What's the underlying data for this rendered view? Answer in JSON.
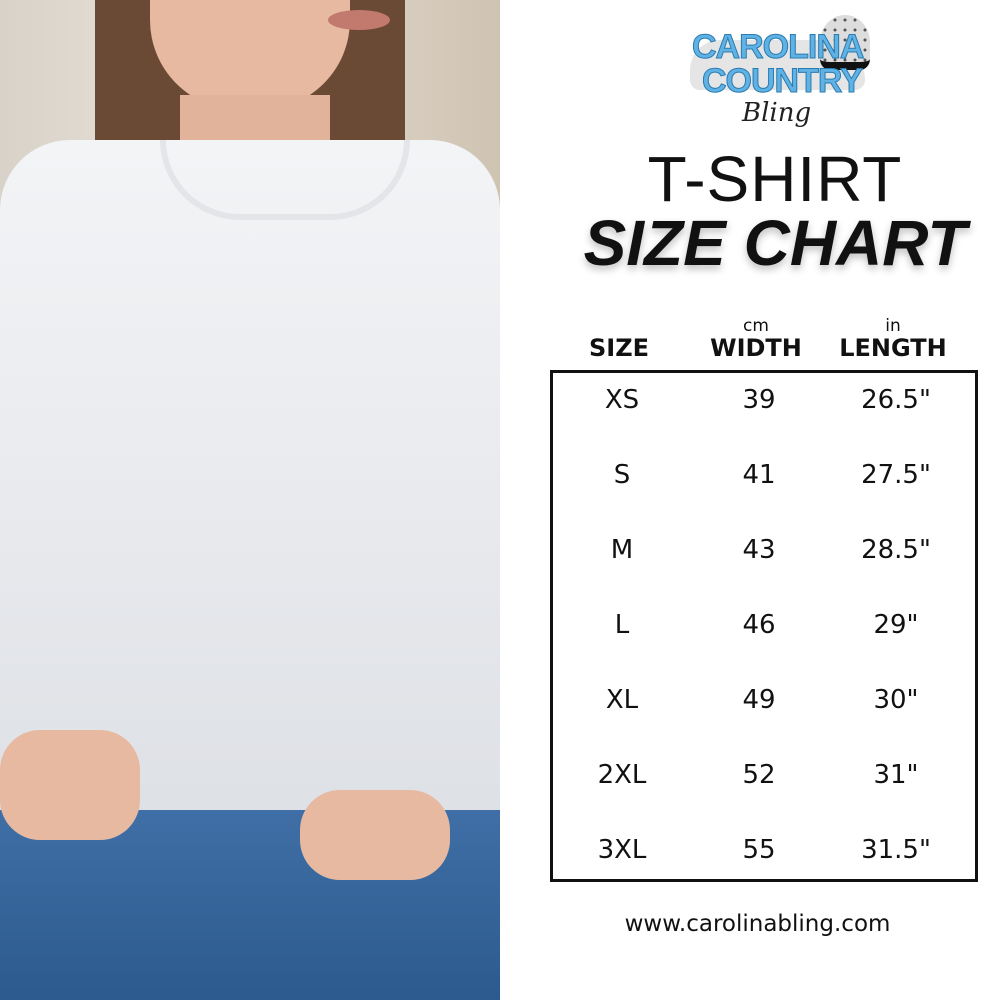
{
  "logo": {
    "line1": "CAROLINA",
    "line2": "COUNTRY",
    "line3": "Bling"
  },
  "title": {
    "line1": "T-SHIRT",
    "line2": "SIZE CHART"
  },
  "table": {
    "columns": [
      {
        "label": "SIZE",
        "unit": ""
      },
      {
        "label": "WIDTH",
        "unit": "cm"
      },
      {
        "label": "LENGTH",
        "unit": "in"
      }
    ],
    "rows": [
      [
        "XS",
        "39",
        "26.5\""
      ],
      [
        "S",
        "41",
        "27.5\""
      ],
      [
        "M",
        "43",
        "28.5\""
      ],
      [
        "L",
        "46",
        "29\""
      ],
      [
        "XL",
        "49",
        "30\""
      ],
      [
        "2XL",
        "52",
        "31\""
      ],
      [
        "3XL",
        "55",
        "31.5\""
      ]
    ]
  },
  "footer": {
    "website": "www.carolinabling.com"
  },
  "colors": {
    "logo_blue": "#5fb2e3",
    "text": "#111111"
  }
}
